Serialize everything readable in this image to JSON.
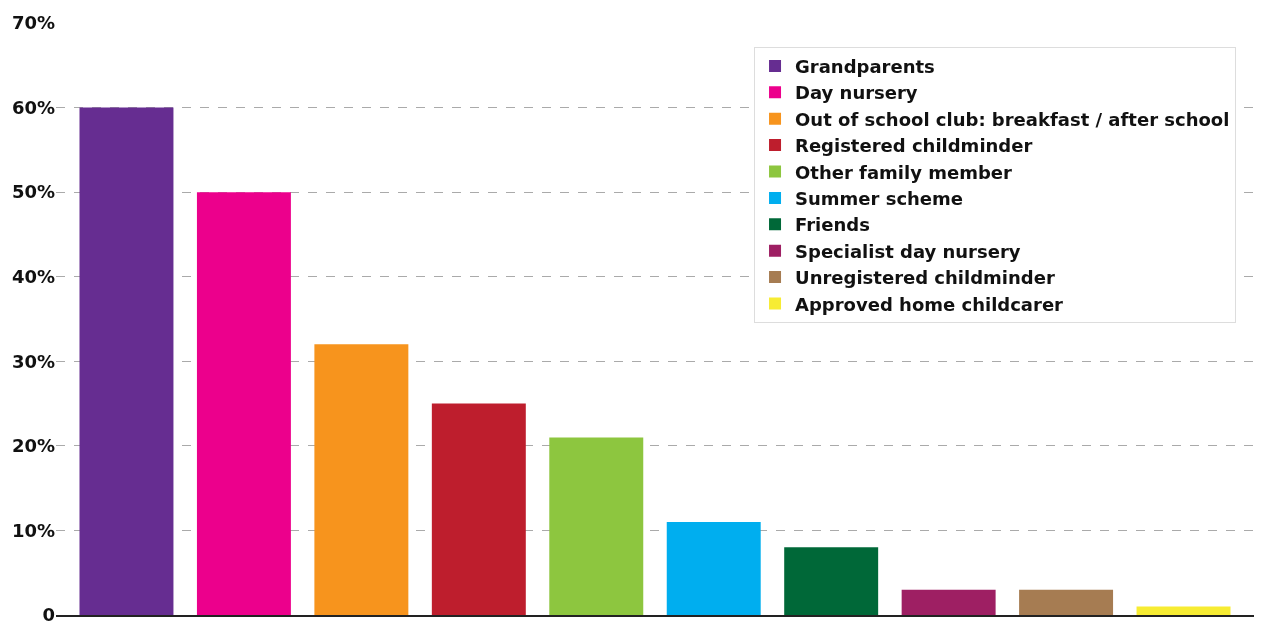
{
  "chart_data": {
    "type": "bar",
    "categories": [
      null,
      null,
      null,
      null,
      null,
      null,
      null,
      null,
      null,
      null
    ],
    "series": [
      {
        "name": "Grandparents",
        "color": "#662d91",
        "values": [
          60,
          null,
          null,
          null,
          null,
          null,
          null,
          null,
          null,
          null
        ]
      },
      {
        "name": "Day nursery",
        "color": "#ec008c",
        "values": [
          null,
          50,
          null,
          null,
          null,
          null,
          null,
          null,
          null,
          null
        ]
      },
      {
        "name": "Out of school club: breakfast / after school",
        "color": "#f7941d",
        "values": [
          null,
          null,
          32,
          null,
          null,
          null,
          null,
          null,
          null,
          null
        ]
      },
      {
        "name": "Registered childminder",
        "color": "#be1e2d",
        "values": [
          null,
          null,
          null,
          25,
          null,
          null,
          null,
          null,
          null,
          null
        ]
      },
      {
        "name": "Other family member",
        "color": "#8dc63f",
        "values": [
          null,
          null,
          null,
          null,
          21,
          null,
          null,
          null,
          null,
          null
        ]
      },
      {
        "name": "Summer scheme",
        "color": "#00aeef",
        "values": [
          null,
          null,
          null,
          null,
          null,
          11,
          null,
          null,
          null,
          null
        ]
      },
      {
        "name": "Friends",
        "color": "#006838",
        "values": [
          null,
          null,
          null,
          null,
          null,
          null,
          8,
          null,
          null,
          null
        ]
      },
      {
        "name": "Specialist day nursery",
        "color": "#9e1f63",
        "values": [
          null,
          null,
          null,
          null,
          null,
          null,
          null,
          3,
          null,
          null
        ]
      },
      {
        "name": "Unregistered childminder",
        "color": "#a67c52",
        "values": [
          null,
          null,
          null,
          null,
          null,
          null,
          null,
          null,
          3,
          null
        ]
      },
      {
        "name": "Approved home childcarer",
        "color": "#f7ec33",
        "values": [
          null,
          null,
          null,
          null,
          null,
          null,
          null,
          null,
          null,
          1
        ]
      }
    ],
    "ylim": [
      0,
      70
    ],
    "yticks": [
      0,
      {
        "value": 10,
        "label": "10%"
      },
      {
        "value": 20,
        "label": "20%"
      },
      {
        "value": 30,
        "label": "30%"
      },
      {
        "value": 40,
        "label": "40%"
      },
      {
        "value": 50,
        "label": "50%"
      },
      {
        "value": 60,
        "label": "60%"
      },
      {
        "value": 70,
        "label": "70%"
      }
    ],
    "grid": "y",
    "legend": "top right",
    "tick_labels": "y"
  }
}
